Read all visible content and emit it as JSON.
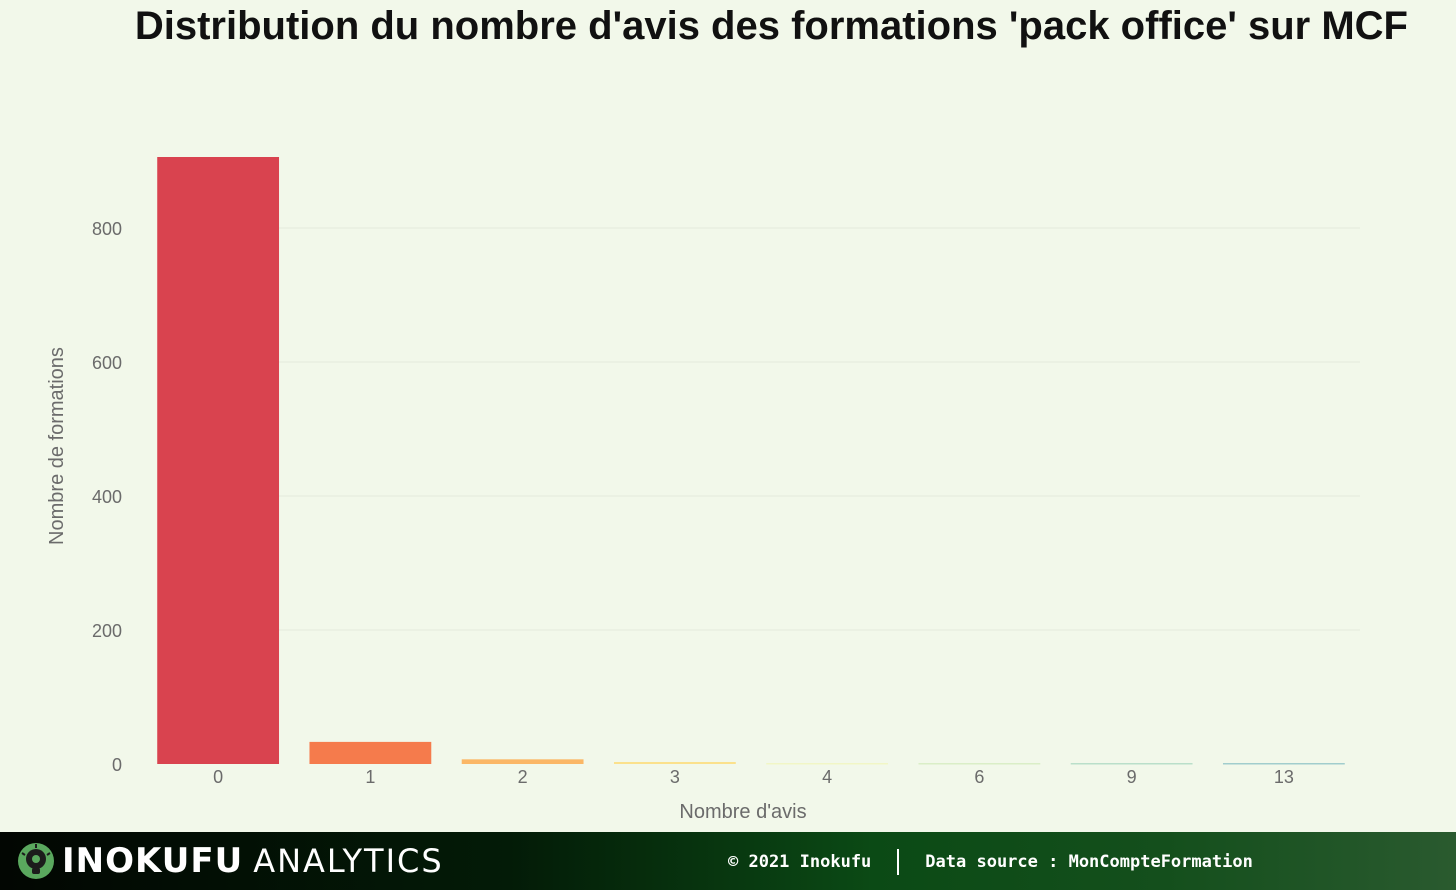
{
  "chart_data": {
    "type": "bar",
    "title": "Distribution du nombre d'avis des formations 'pack office' sur MCF",
    "xlabel": "Nombre d'avis",
    "ylabel": "Nombre de formations",
    "categories": [
      "0",
      "1",
      "2",
      "3",
      "4",
      "6",
      "9",
      "13"
    ],
    "values": [
      906,
      33,
      7,
      3,
      1,
      1,
      1,
      1
    ],
    "colors": [
      "#d9434f",
      "#f57b4c",
      "#fbb766",
      "#fbe18c",
      "#f1f6b4",
      "#cfe9b6",
      "#9ed3bb",
      "#7ab8bf"
    ],
    "ylim": [
      0,
      906
    ],
    "yticks": [
      0,
      200,
      400,
      600,
      800
    ],
    "grid": true,
    "legend": "none"
  },
  "footer": {
    "brand": "INOKUFU",
    "brand_sub": "ANALYTICS",
    "logo_icon": "lightbulb-icon",
    "copyright": "© 2021 Inokufu",
    "source": "Data source : MonCompteFormation"
  }
}
